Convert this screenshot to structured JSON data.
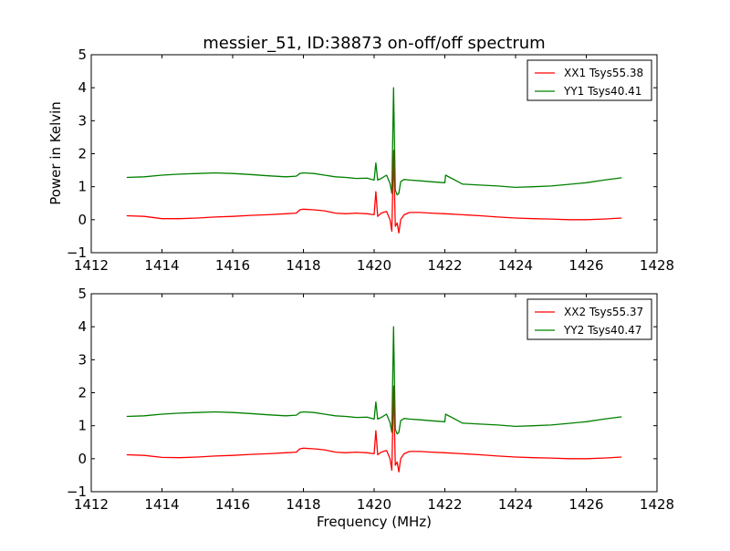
{
  "figure": {
    "title": "messier_51, ID:38873 on-off/off spectrum",
    "ylabel": "Power in Kelvin",
    "xlabel": "Frequency (MHz)"
  },
  "chart_data": [
    {
      "type": "line",
      "title": "messier_51, ID:38873 on-off/off spectrum",
      "xlabel": "",
      "ylabel": "Power in Kelvin",
      "xlim": [
        1412,
        1428
      ],
      "ylim": [
        -1,
        5
      ],
      "xticks": [
        "1412",
        "1414",
        "1416",
        "1418",
        "1420",
        "1422",
        "1424",
        "1426",
        "1428"
      ],
      "yticks": [
        "−1",
        "0",
        "1",
        "2",
        "3",
        "4",
        "5"
      ],
      "legend_position": "top-right",
      "series": [
        {
          "name": "XX1 Tsys55.38",
          "color": "#ff0000",
          "x": [
            1413.0,
            1413.5,
            1414.0,
            1414.5,
            1415.0,
            1415.5,
            1416.0,
            1416.5,
            1417.0,
            1417.5,
            1417.8,
            1417.9,
            1418.0,
            1418.3,
            1418.6,
            1418.9,
            1419.2,
            1419.5,
            1419.8,
            1420.0,
            1420.05,
            1420.1,
            1420.2,
            1420.35,
            1420.45,
            1420.5,
            1420.55,
            1420.6,
            1420.65,
            1420.7,
            1420.75,
            1420.85,
            1421.0,
            1421.3,
            1421.6,
            1422.0,
            1422.5,
            1423.0,
            1423.5,
            1424.0,
            1424.5,
            1425.0,
            1425.5,
            1426.0,
            1426.5,
            1427.0
          ],
          "y": [
            0.12,
            0.1,
            0.03,
            0.03,
            0.05,
            0.08,
            0.1,
            0.13,
            0.15,
            0.18,
            0.2,
            0.3,
            0.32,
            0.3,
            0.27,
            0.2,
            0.18,
            0.2,
            0.18,
            0.15,
            0.85,
            0.1,
            0.2,
            0.25,
            0.0,
            -0.35,
            2.1,
            -0.2,
            -0.1,
            -0.4,
            0.0,
            0.15,
            0.22,
            0.22,
            0.2,
            0.18,
            0.15,
            0.12,
            0.08,
            0.05,
            0.03,
            0.02,
            0.0,
            0.0,
            0.02,
            0.05
          ]
        },
        {
          "name": "YY1 Tsys40.41",
          "color": "#008000",
          "x": [
            1413.0,
            1413.5,
            1414.0,
            1414.5,
            1415.0,
            1415.5,
            1416.0,
            1416.5,
            1417.0,
            1417.5,
            1417.8,
            1417.9,
            1418.0,
            1418.3,
            1418.6,
            1418.9,
            1419.2,
            1419.5,
            1419.8,
            1420.0,
            1420.05,
            1420.1,
            1420.2,
            1420.35,
            1420.45,
            1420.5,
            1420.55,
            1420.6,
            1420.65,
            1420.7,
            1420.75,
            1420.85,
            1421.0,
            1421.3,
            1421.6,
            1422.0,
            1422.02,
            1422.5,
            1423.0,
            1423.5,
            1424.0,
            1424.5,
            1425.0,
            1425.5,
            1426.0,
            1426.5,
            1427.0
          ],
          "y": [
            1.28,
            1.3,
            1.35,
            1.38,
            1.4,
            1.42,
            1.4,
            1.37,
            1.33,
            1.3,
            1.32,
            1.4,
            1.42,
            1.4,
            1.35,
            1.3,
            1.28,
            1.25,
            1.26,
            1.2,
            1.72,
            1.2,
            1.25,
            1.35,
            1.1,
            0.8,
            4.0,
            0.9,
            0.75,
            0.8,
            1.15,
            1.22,
            1.2,
            1.18,
            1.15,
            1.12,
            1.35,
            1.08,
            1.05,
            1.02,
            0.98,
            1.0,
            1.02,
            1.07,
            1.12,
            1.2,
            1.27
          ]
        }
      ]
    },
    {
      "type": "line",
      "title": "",
      "xlabel": "Frequency (MHz)",
      "ylabel": "",
      "xlim": [
        1412,
        1428
      ],
      "ylim": [
        -1,
        5
      ],
      "xticks": [
        "1412",
        "1414",
        "1416",
        "1418",
        "1420",
        "1422",
        "1424",
        "1426",
        "1428"
      ],
      "yticks": [
        "−1",
        "0",
        "1",
        "2",
        "3",
        "4",
        "5"
      ],
      "legend_position": "top-right",
      "series": [
        {
          "name": "XX2 Tsys55.37",
          "color": "#ff0000",
          "x": [
            1413.0,
            1413.5,
            1414.0,
            1414.5,
            1415.0,
            1415.5,
            1416.0,
            1416.5,
            1417.0,
            1417.5,
            1417.8,
            1417.9,
            1418.0,
            1418.3,
            1418.6,
            1418.9,
            1419.2,
            1419.5,
            1419.8,
            1420.0,
            1420.05,
            1420.1,
            1420.2,
            1420.35,
            1420.45,
            1420.5,
            1420.55,
            1420.6,
            1420.65,
            1420.7,
            1420.75,
            1420.85,
            1421.0,
            1421.3,
            1421.6,
            1422.0,
            1422.5,
            1423.0,
            1423.5,
            1424.0,
            1424.5,
            1425.0,
            1425.5,
            1426.0,
            1426.5,
            1427.0
          ],
          "y": [
            0.12,
            0.1,
            0.04,
            0.03,
            0.05,
            0.08,
            0.1,
            0.13,
            0.15,
            0.18,
            0.2,
            0.3,
            0.32,
            0.3,
            0.27,
            0.2,
            0.18,
            0.2,
            0.18,
            0.15,
            0.85,
            0.12,
            0.2,
            0.25,
            0.0,
            -0.35,
            2.2,
            -0.2,
            -0.1,
            -0.4,
            0.0,
            0.15,
            0.22,
            0.22,
            0.2,
            0.18,
            0.15,
            0.12,
            0.08,
            0.05,
            0.03,
            0.02,
            0.0,
            0.0,
            0.02,
            0.05
          ]
        },
        {
          "name": "YY2 Tsys40.47",
          "color": "#008000",
          "x": [
            1413.0,
            1413.5,
            1414.0,
            1414.5,
            1415.0,
            1415.5,
            1416.0,
            1416.5,
            1417.0,
            1417.5,
            1417.8,
            1417.9,
            1418.0,
            1418.3,
            1418.6,
            1418.9,
            1419.2,
            1419.5,
            1419.8,
            1420.0,
            1420.05,
            1420.1,
            1420.2,
            1420.35,
            1420.45,
            1420.5,
            1420.55,
            1420.6,
            1420.65,
            1420.7,
            1420.75,
            1420.85,
            1421.0,
            1421.3,
            1421.6,
            1422.0,
            1422.02,
            1422.5,
            1423.0,
            1423.5,
            1424.0,
            1424.5,
            1425.0,
            1425.5,
            1426.0,
            1426.5,
            1427.0
          ],
          "y": [
            1.28,
            1.3,
            1.35,
            1.38,
            1.4,
            1.42,
            1.4,
            1.37,
            1.33,
            1.3,
            1.32,
            1.4,
            1.42,
            1.4,
            1.35,
            1.3,
            1.28,
            1.25,
            1.26,
            1.2,
            1.72,
            1.2,
            1.25,
            1.35,
            1.1,
            0.8,
            4.0,
            0.9,
            0.75,
            0.8,
            1.15,
            1.22,
            1.2,
            1.18,
            1.15,
            1.12,
            1.35,
            1.08,
            1.05,
            1.02,
            0.98,
            1.0,
            1.02,
            1.07,
            1.12,
            1.2,
            1.27
          ]
        }
      ]
    }
  ]
}
